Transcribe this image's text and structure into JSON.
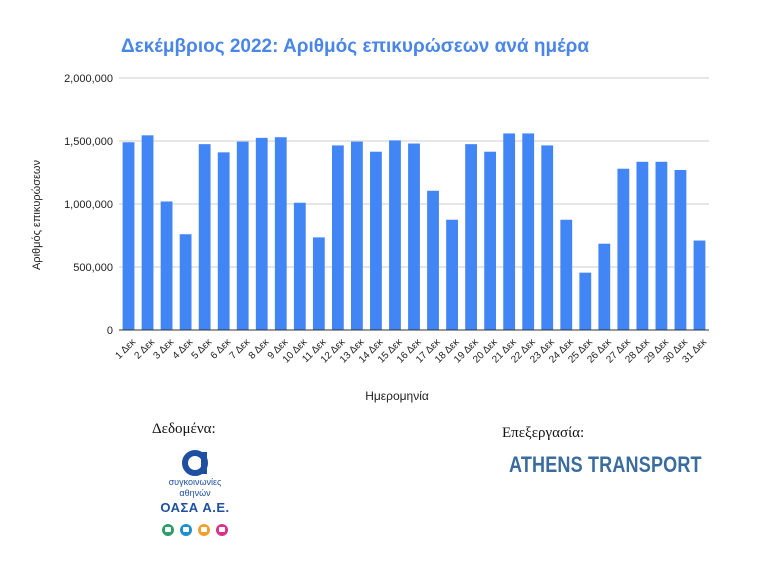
{
  "chart_data": {
    "type": "bar",
    "title": "Δεκέμβριος 2022: Αριθμός επικυρώσεων ανά ημέρα",
    "xlabel": "Ημερομηνία",
    "ylabel": "Αριθμός επικυρώσεων",
    "ylim": [
      0,
      2000000
    ],
    "yticks": [
      "0",
      "500,000",
      "1,000,000",
      "1,500,000",
      "2,000,000"
    ],
    "ytick_values": [
      0,
      500000,
      1000000,
      1500000,
      2000000
    ],
    "grid": true,
    "legend": "none",
    "categories": [
      "1 Δεκ",
      "2 Δεκ",
      "3 Δεκ",
      "4 Δεκ",
      "5 Δεκ",
      "6 Δεκ",
      "7 Δεκ",
      "8 Δεκ",
      "9 Δεκ",
      "10 Δεκ",
      "11 Δεκ",
      "12 Δεκ",
      "13 Δεκ",
      "14 Δεκ",
      "15 Δεκ",
      "16 Δεκ",
      "17 Δεκ",
      "18 Δεκ",
      "19 Δεκ",
      "20 Δεκ",
      "21 Δεκ",
      "22 Δεκ",
      "23 Δεκ",
      "24 Δεκ",
      "25 Δεκ",
      "26 Δεκ",
      "27 Δεκ",
      "28 Δεκ",
      "29 Δεκ",
      "30 Δεκ",
      "31 Δεκ"
    ],
    "values": [
      1490000,
      1545000,
      1020000,
      760000,
      1475000,
      1410000,
      1495000,
      1525000,
      1530000,
      1010000,
      735000,
      1465000,
      1495000,
      1415000,
      1505000,
      1480000,
      1105000,
      875000,
      1475000,
      1415000,
      1560000,
      1560000,
      1465000,
      875000,
      455000,
      685000,
      1280000,
      1335000,
      1335000,
      1270000,
      710000
    ],
    "colors": {
      "bar": "#4285f4",
      "title": "#4a86e8",
      "grid": "#cccccc",
      "axis": "#333333"
    }
  },
  "credits": {
    "data_label": "Δεδομένα:",
    "processing_label": "Επεξεργασία:",
    "oasa_line1": "συγκοινωνίες",
    "oasa_line2": "αθηνών",
    "oasa_name": "ΟΑΣΑ Α.Ε.",
    "oasa_icon": "oasa-alpha-logo-icon",
    "oasa_mode_colors": [
      "#2e9e6b",
      "#1f8fcf",
      "#f0a030",
      "#d8328a"
    ],
    "processing_org": "ATHENS TRANSPORT",
    "processing_color": "#3a6d9e",
    "oasa_color": "#1f4fa0"
  }
}
